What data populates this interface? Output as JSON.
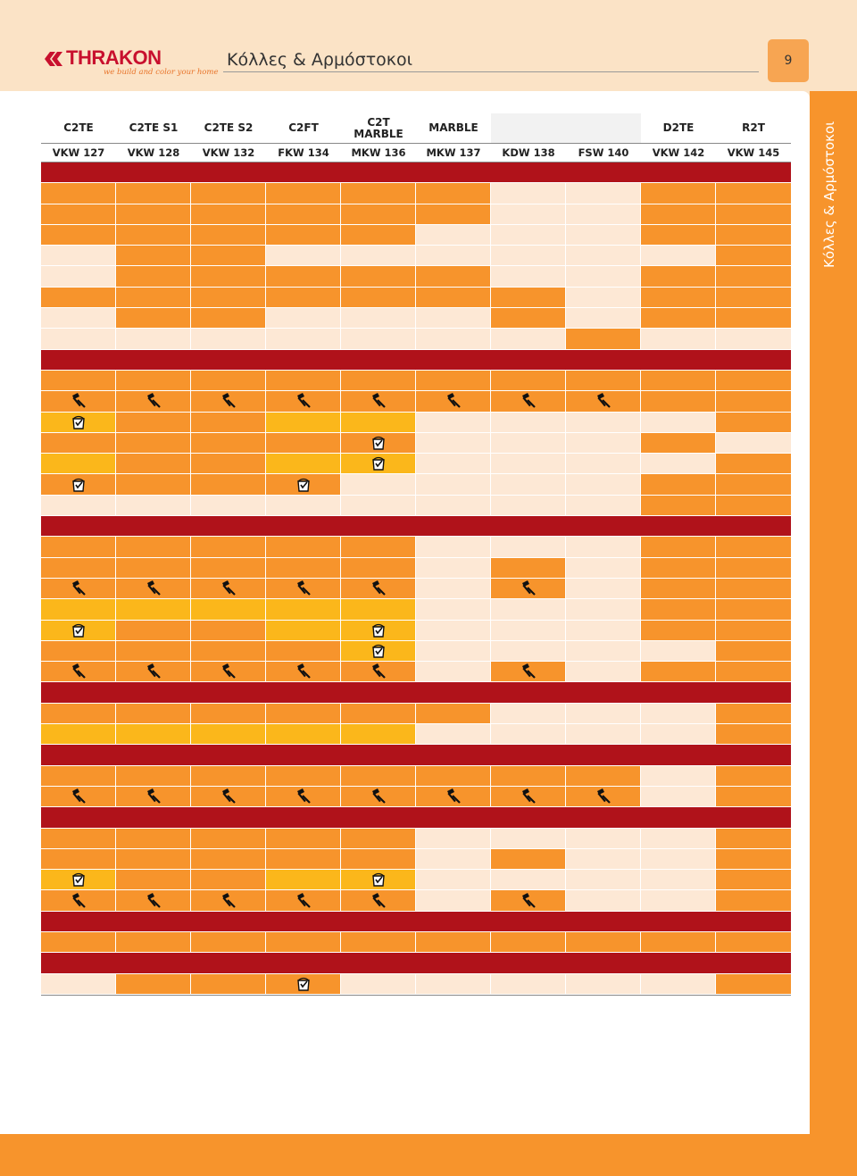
{
  "header": {
    "brand": "THRAKON",
    "tagline": "we build and color your home",
    "title": "Κόλλες & Αρμόστοκοι",
    "page_number": "9"
  },
  "side_label": "Κόλλες & Αρμόστοκοι",
  "columns": {
    "classes": [
      "C2TE",
      "C2TE S1",
      "C2TE S2",
      "C2FT",
      "C2T MARBLE",
      "MARBLE",
      "",
      "",
      "D2TE",
      "R2T"
    ],
    "codes": [
      "VKW 127",
      "VKW 128",
      "VKW 132",
      "FKW 134",
      "MKW 136",
      "MKW 137",
      "KDW 138",
      "FSW 140",
      "VKW 142",
      "VKW 145"
    ]
  },
  "icons": {
    "trowel": "trowel-icon",
    "bucket": "bucket-icon"
  },
  "colors": {
    "orange": "#f7942c",
    "light": "#fde8d5",
    "yellow": "#fbb71b",
    "separator": "#b0121a"
  },
  "rows": [
    "sep",
    "o o o o o o l l o o",
    "o o o o o o l l o o",
    "o o o o o l l l o o",
    "l o o l l l l l l o",
    "l o o o o o l l o o",
    "o o o o o o o l o o",
    "l o o l l l o l o o",
    "l l l l l l l o l l",
    "sep",
    "o o o o o o o o o o",
    "o:T o:T o:T o:T o:T o:T o:T o:T o o",
    "y:B o o y y l l l l o",
    "o o o o o:B l l l o l",
    "y o o y y:B l l l l o",
    "o:B o o o:B l l l l o o",
    "l l l l l l l l o o",
    "sep",
    "o o o o o l l l o o",
    "o o o o o l o l o o",
    "o:T o:T o:T o:T o:T l o:T l o o",
    "y y y y y l l l o o",
    "y:B o o y y:B l l l o o",
    "o o o o y:B l l l l o",
    "o:T o:T o:T o:T o:T l o:T l o o",
    "sep",
    "o o o o o o l l l o",
    "y y y y y l l l l o",
    "sep",
    "o o o o o o o o l o",
    "o:T o:T o:T o:T o:T o:T o:T o:T l o",
    "sep",
    "o o o o o l l l l o",
    "o o o o o l o l l o",
    "y:B o o y y:B l l l l o",
    "o:T o:T o:T o:T o:T l o:T l l o",
    "sep",
    "o o o o o o o o o o",
    "sep",
    "l o o o:B l l l l l o"
  ]
}
